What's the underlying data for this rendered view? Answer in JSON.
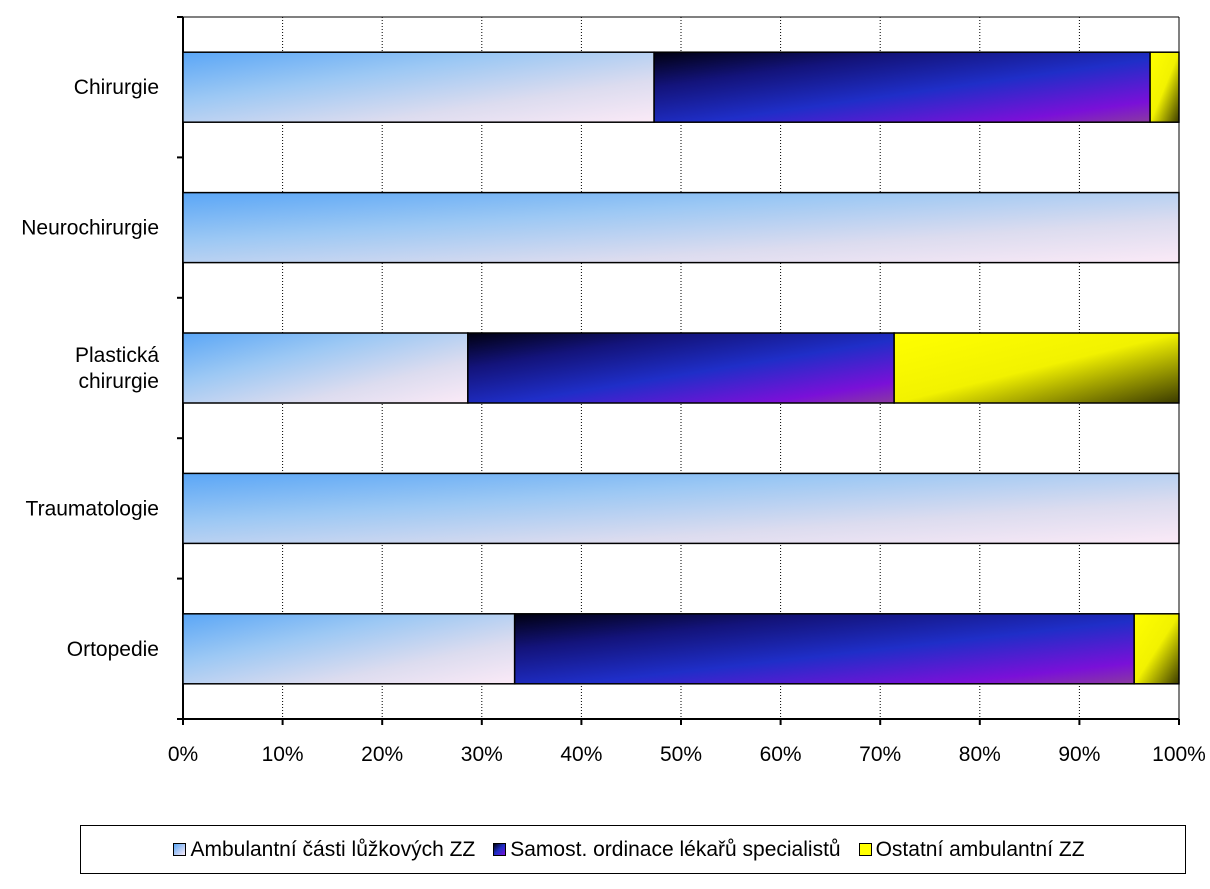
{
  "chart_data": {
    "type": "bar",
    "orientation": "horizontal",
    "stacked": "percent",
    "categories": [
      "Chirurgie",
      "Neurochirurgie",
      "Plastická chirurgie",
      "Traumatologie",
      "Ortopedie"
    ],
    "category_lines": [
      [
        "Chirurgie"
      ],
      [
        "Neurochirurgie"
      ],
      [
        "Plastická",
        "chirurgie"
      ],
      [
        "Traumatologie"
      ],
      [
        "Ortopedie"
      ]
    ],
    "series": [
      {
        "name": "Ambulantní části lůžkových ZZ",
        "values": [
          47.3,
          100,
          28.6,
          100,
          33.3
        ],
        "color": "#7ab8f5"
      },
      {
        "name": "Samost. ordinace lékařů specialistů",
        "values": [
          49.8,
          0,
          42.8,
          0,
          62.2
        ],
        "color": "#1a1aa8"
      },
      {
        "name": "Ostatní ambulantní ZZ",
        "values": [
          2.9,
          0,
          28.6,
          0,
          4.5
        ],
        "color": "#ffff00"
      }
    ],
    "x_ticks": [
      "0%",
      "10%",
      "20%",
      "30%",
      "40%",
      "50%",
      "60%",
      "70%",
      "80%",
      "90%",
      "100%"
    ],
    "xlim": [
      0,
      100
    ],
    "grid": "vertical-dotted",
    "legend_position": "bottom"
  }
}
